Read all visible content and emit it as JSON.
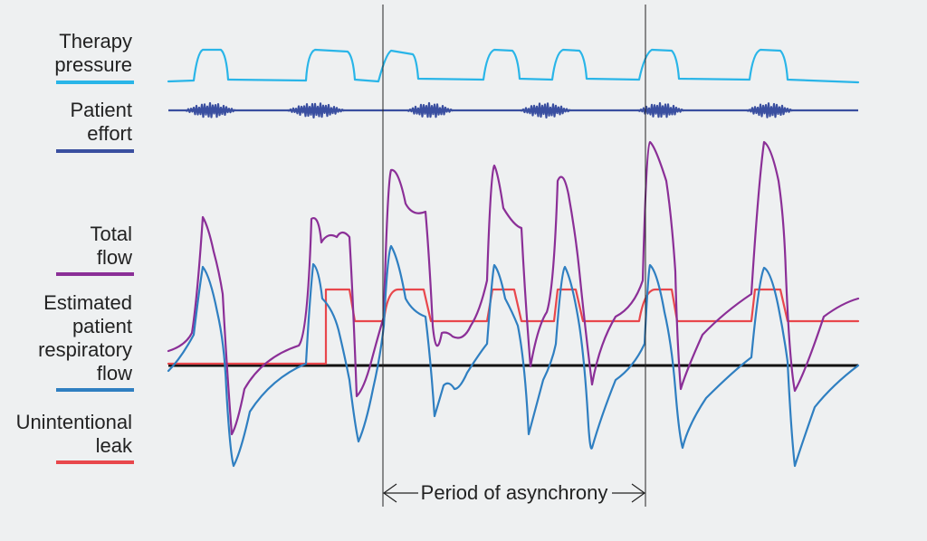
{
  "labels": [
    {
      "lines": [
        "Therapy",
        "pressure"
      ]
    },
    {
      "lines": [
        "Patient",
        "effort"
      ]
    },
    {
      "lines": [
        "Total",
        "flow"
      ]
    },
    {
      "lines": [
        "Estimated",
        "patient",
        "respiratory",
        "flow"
      ]
    },
    {
      "lines": [
        "Unintentional",
        "leak"
      ]
    }
  ],
  "annotation": "Period of asynchrony"
}
